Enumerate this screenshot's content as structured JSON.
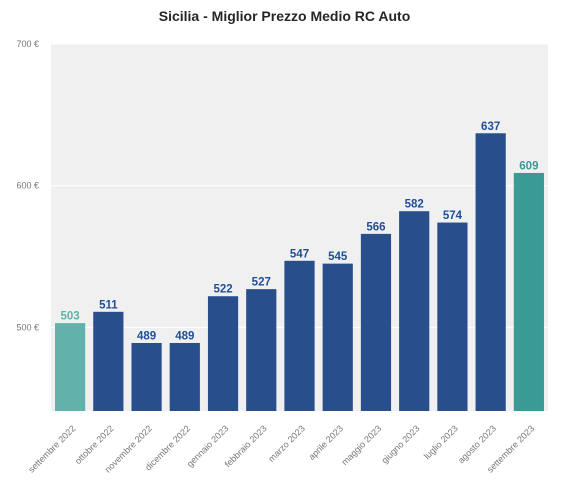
{
  "chart_data": {
    "type": "bar",
    "title": "Sicilia - Miglior Prezzo Medio RC Auto",
    "categories": [
      "settembre 2022",
      "ottobre 2022",
      "novembre 2022",
      "dicembre 2022",
      "gennaio 2023",
      "febbraio 2023",
      "marzo 2023",
      "aprile 2023",
      "maggio 2023",
      "giugno 2023",
      "luglio 2023",
      "agosto 2023",
      "settembre 2023"
    ],
    "values": [
      503,
      511,
      489,
      489,
      522,
      527,
      547,
      545,
      566,
      582,
      574,
      637,
      609
    ],
    "value_labels": [
      "503",
      "511",
      "489",
      "489",
      "522",
      "527",
      "547",
      "545",
      "566",
      "582",
      "574",
      "637",
      "609"
    ],
    "bar_colors": [
      "#62b1ab",
      "#284f8c",
      "#284f8c",
      "#284f8c",
      "#284f8c",
      "#284f8c",
      "#284f8c",
      "#284f8c",
      "#284f8c",
      "#284f8c",
      "#284f8c",
      "#284f8c",
      "#3a9b95"
    ],
    "label_colors": [
      "#62b1ab",
      "#1f4f96",
      "#1f4f96",
      "#1f4f96",
      "#1f4f96",
      "#1f4f96",
      "#1f4f96",
      "#1f4f96",
      "#1f4f96",
      "#1f4f96",
      "#1f4f96",
      "#1f4f96",
      "#3a9b95"
    ],
    "y_ticks": [
      500,
      600,
      700
    ],
    "y_tick_labels": [
      "500 €",
      "600 €",
      "700 €"
    ],
    "ylim": [
      441,
      700
    ],
    "xlabel": "",
    "ylabel": "",
    "grid": true,
    "plot_background": "#f0f0f0"
  }
}
